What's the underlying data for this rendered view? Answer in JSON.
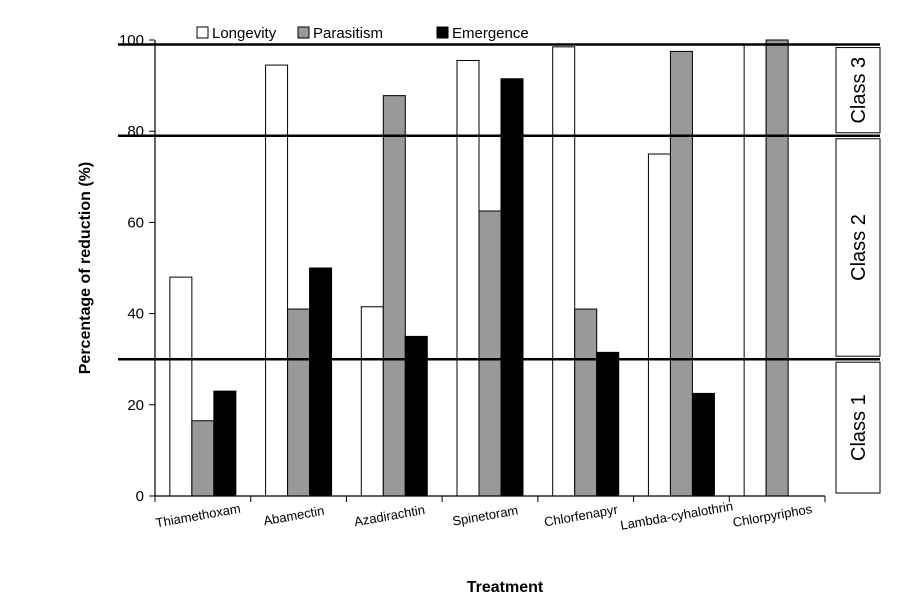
{
  "chart_data": {
    "type": "bar",
    "categories": [
      "Thiamethoxam",
      "Abamectin",
      "Azadirachtin",
      "Spinetoram",
      "Chlorfenapyr",
      "Lambda-cyhalothrin",
      "Chlorpyriphos"
    ],
    "series": [
      {
        "name": "Longevity",
        "color": "#ffffff",
        "values": [
          48,
          94.5,
          41.5,
          95.5,
          98.5,
          75,
          99
        ]
      },
      {
        "name": "Parasitism",
        "color": "#999999",
        "values": [
          16.5,
          41,
          87.8,
          62.5,
          41,
          97.5,
          100
        ]
      },
      {
        "name": "Emergence",
        "color": "#000000",
        "values": [
          23,
          50,
          35,
          91.5,
          31.5,
          22.5,
          0
        ]
      }
    ],
    "xlabel": "Treatment",
    "ylabel": "Percentage of reduction (%)",
    "ylim": [
      0,
      100
    ],
    "yticks": [
      "0",
      "20",
      "40",
      "60",
      "80",
      "100"
    ],
    "thresholds": [
      30,
      79,
      99
    ],
    "classes": [
      {
        "label": "Class 1",
        "from": 0,
        "to": 30
      },
      {
        "label": "Class 2",
        "from": 30,
        "to": 79
      },
      {
        "label": "Class 3",
        "from": 79,
        "to": 99
      }
    ],
    "legend_position": "top"
  }
}
